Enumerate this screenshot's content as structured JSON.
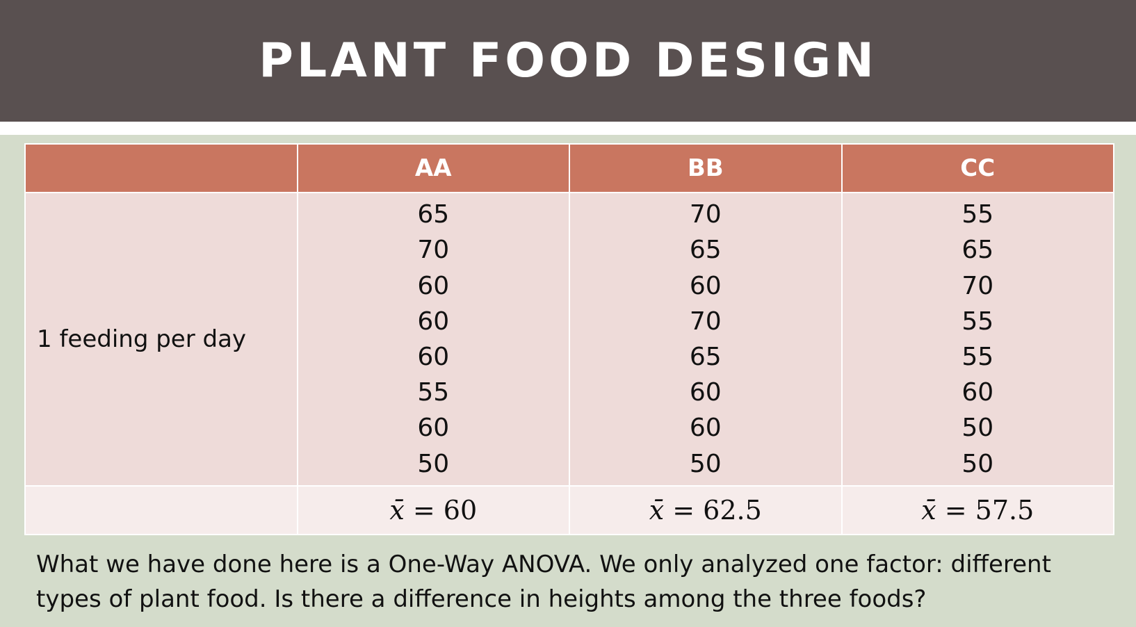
{
  "slide": {
    "title": "PLANT FOOD DESIGN",
    "footer_text": "What we have done here is a One-Way ANOVA. We only analyzed one factor: different types of plant food. Is there a difference in heights among the three foods?"
  },
  "table": {
    "columns": [
      "",
      "AA",
      "BB",
      "CC"
    ],
    "row_label": "1 feeding per day",
    "values": {
      "AA": [
        "65",
        "70",
        "60",
        "60",
        "60",
        "55",
        "60",
        "50"
      ],
      "BB": [
        "70",
        "65",
        "60",
        "70",
        "65",
        "60",
        "60",
        "50"
      ],
      "CC": [
        "55",
        "65",
        "70",
        "55",
        "55",
        "60",
        "50",
        "50"
      ]
    },
    "mean_symbol": "x̄",
    "means": {
      "AA": "60",
      "BB": "62.5",
      "CC": "57.5"
    }
  },
  "colors": {
    "title_bar": "#595050",
    "header_fill": "#c97660",
    "body_fill": "#eedbd9",
    "mean_fill": "#f6eceb",
    "background": "#d4dccb"
  }
}
